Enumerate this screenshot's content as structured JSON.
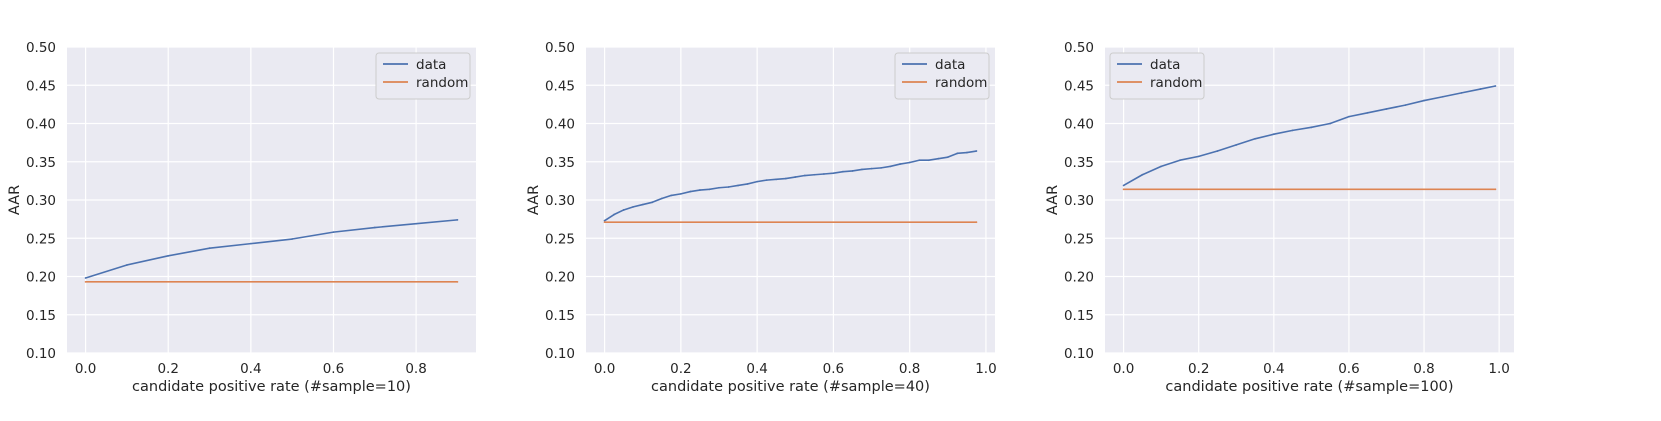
{
  "chart_data": [
    {
      "type": "line",
      "xlabel": "candidate positive rate (#sample=10)",
      "ylabel": "AAR",
      "xlim": [
        -0.045,
        0.945
      ],
      "ylim": [
        0.1,
        0.5
      ],
      "xticks": [
        0.0,
        0.2,
        0.4,
        0.6,
        0.8
      ],
      "xtick_labels": [
        "0.0",
        "0.2",
        "0.4",
        "0.6",
        "0.8"
      ],
      "yticks": [
        0.1,
        0.15,
        0.2,
        0.25,
        0.3,
        0.35,
        0.4,
        0.45,
        0.5
      ],
      "ytick_labels": [
        "0.10",
        "0.15",
        "0.20",
        "0.25",
        "0.30",
        "0.35",
        "0.40",
        "0.45",
        "0.50"
      ],
      "grid": true,
      "legend_position": "upper right",
      "series": [
        {
          "name": "data",
          "color": "#4c72b0",
          "x": [
            0.0,
            0.1,
            0.2,
            0.3,
            0.4,
            0.5,
            0.6,
            0.7,
            0.8,
            0.9
          ],
          "y": [
            0.198,
            0.215,
            0.227,
            0.237,
            0.243,
            0.249,
            0.258,
            0.264,
            0.269,
            0.274
          ]
        },
        {
          "name": "random",
          "color": "#dd8452",
          "x": [
            0.0,
            0.9
          ],
          "y": [
            0.193,
            0.193
          ]
        }
      ]
    },
    {
      "type": "line",
      "xlabel": "candidate positive rate (#sample=40)",
      "ylabel": "AAR",
      "xlim": [
        -0.04875,
        1.02375
      ],
      "ylim": [
        0.1,
        0.5
      ],
      "xticks": [
        0.0,
        0.2,
        0.4,
        0.6,
        0.8,
        1.0
      ],
      "xtick_labels": [
        "0.0",
        "0.2",
        "0.4",
        "0.6",
        "0.8",
        "1.0"
      ],
      "yticks": [
        0.1,
        0.15,
        0.2,
        0.25,
        0.3,
        0.35,
        0.4,
        0.45,
        0.5
      ],
      "ytick_labels": [
        "0.10",
        "0.15",
        "0.20",
        "0.25",
        "0.30",
        "0.35",
        "0.40",
        "0.45",
        "0.50"
      ],
      "grid": true,
      "legend_position": "upper right",
      "series": [
        {
          "name": "data",
          "color": "#4c72b0",
          "x": [
            0.0,
            0.025,
            0.05,
            0.075,
            0.1,
            0.125,
            0.15,
            0.175,
            0.2,
            0.225,
            0.25,
            0.275,
            0.3,
            0.325,
            0.35,
            0.375,
            0.4,
            0.425,
            0.45,
            0.475,
            0.5,
            0.525,
            0.55,
            0.575,
            0.6,
            0.625,
            0.65,
            0.675,
            0.7,
            0.725,
            0.75,
            0.775,
            0.8,
            0.825,
            0.85,
            0.875,
            0.9,
            0.925,
            0.95,
            0.975
          ],
          "y": [
            0.273,
            0.281,
            0.287,
            0.291,
            0.294,
            0.297,
            0.302,
            0.306,
            0.308,
            0.311,
            0.313,
            0.314,
            0.316,
            0.317,
            0.319,
            0.321,
            0.324,
            0.326,
            0.327,
            0.328,
            0.33,
            0.332,
            0.333,
            0.334,
            0.335,
            0.337,
            0.338,
            0.34,
            0.341,
            0.342,
            0.344,
            0.347,
            0.349,
            0.352,
            0.352,
            0.354,
            0.356,
            0.361,
            0.362,
            0.364
          ]
        },
        {
          "name": "random",
          "color": "#dd8452",
          "x": [
            0.0,
            0.975
          ],
          "y": [
            0.271,
            0.271
          ]
        }
      ]
    },
    {
      "type": "line",
      "xlabel": "candidate positive rate (#sample=100)",
      "ylabel": "AAR",
      "xlim": [
        -0.0495,
        1.0395
      ],
      "ylim": [
        0.1,
        0.5
      ],
      "xticks": [
        0.0,
        0.2,
        0.4,
        0.6,
        0.8,
        1.0
      ],
      "xtick_labels": [
        "0.0",
        "0.2",
        "0.4",
        "0.6",
        "0.8",
        "1.0"
      ],
      "yticks": [
        0.1,
        0.15,
        0.2,
        0.25,
        0.3,
        0.35,
        0.4,
        0.45,
        0.5
      ],
      "ytick_labels": [
        "0.10",
        "0.15",
        "0.20",
        "0.25",
        "0.30",
        "0.35",
        "0.40",
        "0.45",
        "0.50"
      ],
      "grid": true,
      "legend_position": "upper left",
      "series": [
        {
          "name": "data",
          "color": "#4c72b0",
          "x": [
            0.0,
            0.05,
            0.1,
            0.15,
            0.2,
            0.25,
            0.3,
            0.35,
            0.4,
            0.45,
            0.5,
            0.55,
            0.6,
            0.65,
            0.7,
            0.75,
            0.8,
            0.85,
            0.9,
            0.95,
            0.99
          ],
          "y": [
            0.319,
            0.333,
            0.344,
            0.352,
            0.357,
            0.364,
            0.372,
            0.38,
            0.386,
            0.391,
            0.395,
            0.4,
            0.409,
            0.414,
            0.419,
            0.424,
            0.43,
            0.435,
            0.44,
            0.445,
            0.449
          ]
        },
        {
          "name": "random",
          "color": "#dd8452",
          "x": [
            0.0,
            0.99
          ],
          "y": [
            0.314,
            0.314
          ]
        }
      ]
    }
  ]
}
